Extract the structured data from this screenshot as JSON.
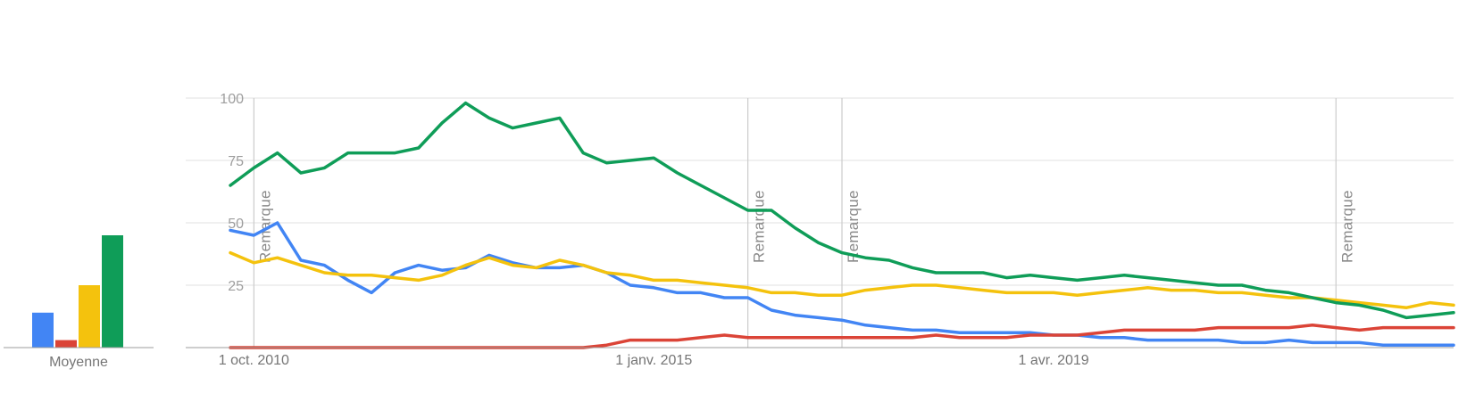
{
  "colors": {
    "grid": "#e0e0e0",
    "axis": "#9e9e9e",
    "note_line": "#cccccc"
  },
  "average_panel": {
    "label": "Moyenne",
    "bars": [
      {
        "color": "#4285f4",
        "value": 14
      },
      {
        "color": "#db4437",
        "value": 3
      },
      {
        "color": "#f4c20d",
        "value": 25
      },
      {
        "color": "#0f9d58",
        "value": 45
      }
    ]
  },
  "chart_data": {
    "type": "line",
    "x_start": "2010-09",
    "x_step": "quarter",
    "x_ticks": [
      {
        "label": "1 oct. 2010",
        "index": 1
      },
      {
        "label": "1 janv. 2015",
        "index": 18
      },
      {
        "label": "1 avr. 2019",
        "index": 35
      }
    ],
    "y_ticks": [
      100,
      75,
      50,
      25
    ],
    "ylim": [
      0,
      100
    ],
    "grid": true,
    "annotations": [
      {
        "label": "Remarque",
        "index": 1
      },
      {
        "label": "Remarque",
        "index": 22
      },
      {
        "label": "Remarque",
        "index": 26
      },
      {
        "label": "Remarque",
        "index": 47
      }
    ],
    "series": [
      {
        "color": "#4285f4",
        "values": [
          47,
          45,
          50,
          35,
          33,
          27,
          22,
          30,
          33,
          31,
          32,
          37,
          34,
          32,
          32,
          33,
          30,
          25,
          24,
          22,
          22,
          20,
          20,
          15,
          13,
          12,
          11,
          9,
          8,
          7,
          7,
          6,
          6,
          6,
          6,
          5,
          5,
          4,
          4,
          3,
          3,
          3,
          3,
          2,
          2,
          3,
          2,
          2,
          2,
          1,
          1,
          1,
          1
        ]
      },
      {
        "color": "#db4437",
        "values": [
          0,
          0,
          0,
          0,
          0,
          0,
          0,
          0,
          0,
          0,
          0,
          0,
          0,
          0,
          0,
          0,
          1,
          3,
          3,
          3,
          4,
          5,
          4,
          4,
          4,
          4,
          4,
          4,
          4,
          4,
          5,
          4,
          4,
          4,
          5,
          5,
          5,
          6,
          7,
          7,
          7,
          7,
          8,
          8,
          8,
          8,
          9,
          8,
          7,
          8,
          8,
          8,
          8
        ]
      },
      {
        "color": "#f4c20d",
        "values": [
          38,
          34,
          36,
          33,
          30,
          29,
          29,
          28,
          27,
          29,
          33,
          36,
          33,
          32,
          35,
          33,
          30,
          29,
          27,
          27,
          26,
          25,
          24,
          22,
          22,
          21,
          21,
          23,
          24,
          25,
          25,
          24,
          23,
          22,
          22,
          22,
          21,
          22,
          23,
          24,
          23,
          23,
          22,
          22,
          21,
          20,
          20,
          19,
          18,
          17,
          16,
          18,
          17
        ]
      },
      {
        "color": "#0f9d58",
        "values": [
          65,
          72,
          78,
          70,
          72,
          78,
          78,
          78,
          80,
          90,
          98,
          92,
          88,
          90,
          92,
          78,
          74,
          75,
          76,
          70,
          65,
          60,
          55,
          55,
          48,
          42,
          38,
          36,
          35,
          32,
          30,
          30,
          30,
          28,
          29,
          28,
          27,
          28,
          29,
          28,
          27,
          26,
          25,
          25,
          23,
          22,
          20,
          18,
          17,
          15,
          12,
          13,
          14
        ]
      }
    ]
  }
}
